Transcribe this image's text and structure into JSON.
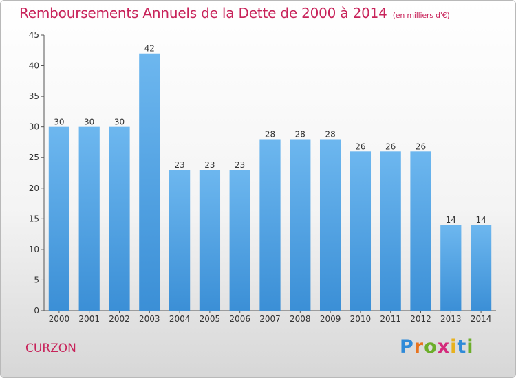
{
  "header": {
    "title": "Remboursements Annuels de la Dette de 2000 à 2014",
    "unit": "(en milliers d'€)"
  },
  "footer": {
    "commune": "CURZON",
    "logo": {
      "text": "Proxiti",
      "letters": [
        "P",
        "r",
        "o",
        "x",
        "i",
        "t",
        "i"
      ],
      "colors": [
        "#2e8ad8",
        "#e8731e",
        "#6cae2a",
        "#d42a7b",
        "#e8b21e",
        "#2e8ad8",
        "#6cae2a"
      ]
    }
  },
  "chart_data": {
    "type": "bar",
    "title": "Remboursements Annuels de la Dette de 2000 à 2014",
    "subtitle": "(en milliers d'€)",
    "xlabel": "",
    "ylabel": "",
    "categories": [
      "2000",
      "2001",
      "2002",
      "2003",
      "2004",
      "2005",
      "2006",
      "2007",
      "2008",
      "2009",
      "2010",
      "2011",
      "2012",
      "2013",
      "2014"
    ],
    "values": [
      30,
      30,
      30,
      42,
      23,
      23,
      23,
      28,
      28,
      28,
      26,
      26,
      26,
      14,
      14
    ],
    "ylim": [
      0,
      45
    ],
    "yticks": [
      0,
      5,
      10,
      15,
      20,
      25,
      30,
      35,
      40,
      45
    ],
    "grid": false,
    "legend": "none",
    "bar_color": "#3b8fd6",
    "bar_color_light": "#6db7ef"
  }
}
